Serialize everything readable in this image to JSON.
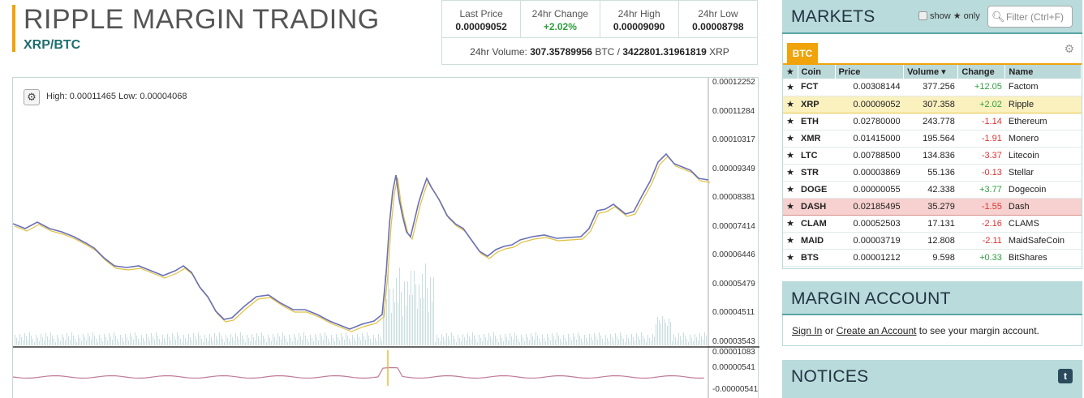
{
  "header": {
    "title": "RIPPLE MARGIN TRADING",
    "pair": "XRP/BTC"
  },
  "stats": {
    "cells": [
      {
        "label": "Last Price",
        "value": "0.00009052"
      },
      {
        "label": "24hr Change",
        "value": "+2.02%"
      },
      {
        "label": "24hr High",
        "value": "0.00009090"
      },
      {
        "label": "24hr Low",
        "value": "0.00008798"
      }
    ],
    "volume_label": "24hr Volume:",
    "volume_btc": "307.35789956",
    "volume_btc_unit": "BTC /",
    "volume_xrp": "3422801.31961819",
    "volume_xrp_unit": "XRP"
  },
  "chart": {
    "high_low": "High: 0.00011465   Low: 0.00004068",
    "price_ticks": [
      "0.00012252",
      "0.00011284",
      "0.00010317",
      "0.00009349",
      "0.00008381",
      "0.00007414",
      "0.00006446",
      "0.00005479",
      "0.00004511",
      "0.00003543"
    ],
    "macd_ticks": [
      "0.00001083",
      "0.00000541",
      "-0.00000541"
    ],
    "colors": {
      "price": "#6a6fb5",
      "ema": "#e0c040",
      "volume": "#c9dede",
      "macd": "#c07a9a"
    }
  },
  "markets": {
    "title": "MARKETS",
    "show_label": "show",
    "only_label": "only",
    "filter_placeholder": "Filter (Ctrl+F)",
    "tab": "BTC",
    "columns": [
      "Coin",
      "Price",
      "Volume ▾",
      "Change",
      "Name"
    ],
    "rows": [
      {
        "coin": "FCT",
        "price": "0.00308144",
        "volume": "377.256",
        "change": "+12.05",
        "name": "Factom"
      },
      {
        "coin": "XRP",
        "price": "0.00009052",
        "volume": "307.358",
        "change": "+2.02",
        "name": "Ripple"
      },
      {
        "coin": "ETH",
        "price": "0.02780000",
        "volume": "243.778",
        "change": "-1.14",
        "name": "Ethereum"
      },
      {
        "coin": "XMR",
        "price": "0.01415000",
        "volume": "195.564",
        "change": "-1.91",
        "name": "Monero"
      },
      {
        "coin": "LTC",
        "price": "0.00788500",
        "volume": "134.836",
        "change": "-3.37",
        "name": "Litecoin"
      },
      {
        "coin": "STR",
        "price": "0.00003869",
        "volume": "55.136",
        "change": "-0.13",
        "name": "Stellar"
      },
      {
        "coin": "DOGE",
        "price": "0.00000055",
        "volume": "42.338",
        "change": "+3.77",
        "name": "Dogecoin"
      },
      {
        "coin": "DASH",
        "price": "0.02185495",
        "volume": "35.279",
        "change": "-1.55",
        "name": "Dash"
      },
      {
        "coin": "CLAM",
        "price": "0.00052503",
        "volume": "17.131",
        "change": "-2.16",
        "name": "CLAMS"
      },
      {
        "coin": "MAID",
        "price": "0.00003719",
        "volume": "12.808",
        "change": "-2.11",
        "name": "MaidSafeCoin"
      },
      {
        "coin": "BTS",
        "price": "0.00001212",
        "volume": "9.598",
        "change": "+0.33",
        "name": "BitShares"
      }
    ]
  },
  "margin": {
    "title": "MARGIN ACCOUNT",
    "sign_in": "Sign In",
    "or": "or",
    "create": "Create an Account",
    "rest": "to see your margin account."
  },
  "notices": {
    "title": "NOTICES"
  }
}
